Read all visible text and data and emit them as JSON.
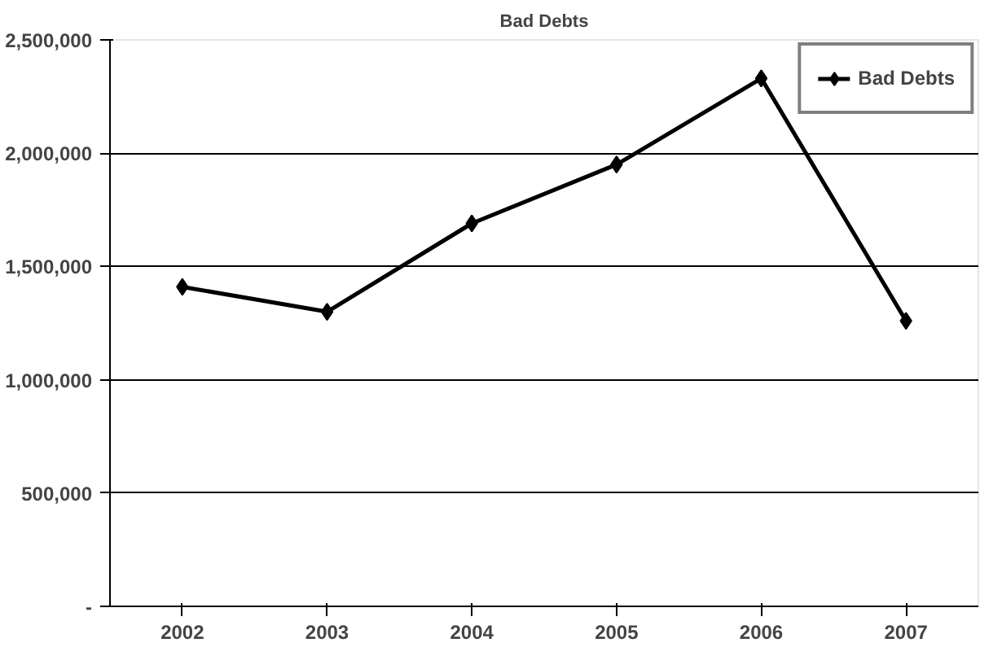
{
  "chart_data": {
    "type": "line",
    "title": "Bad Debts",
    "categories": [
      "2002",
      "2003",
      "2004",
      "2005",
      "2006",
      "2007"
    ],
    "series": [
      {
        "name": "Bad Debts",
        "color": "#000000",
        "values": [
          1410000,
          1300000,
          1690000,
          1950000,
          2330000,
          1260000
        ]
      }
    ],
    "ylim": [
      0,
      2500000
    ],
    "yticks": [
      {
        "value": 0,
        "label": "-"
      },
      {
        "value": 500000,
        "label": "500,000"
      },
      {
        "value": 1000000,
        "label": "1,000,000"
      },
      {
        "value": 1500000,
        "label": "1,500,000"
      },
      {
        "value": 2000000,
        "label": "2,000,000"
      },
      {
        "value": 2500000,
        "label": "2,500,000"
      }
    ],
    "grid": "y",
    "legend": "top right",
    "marker": "diamond",
    "line_style": "solid"
  }
}
